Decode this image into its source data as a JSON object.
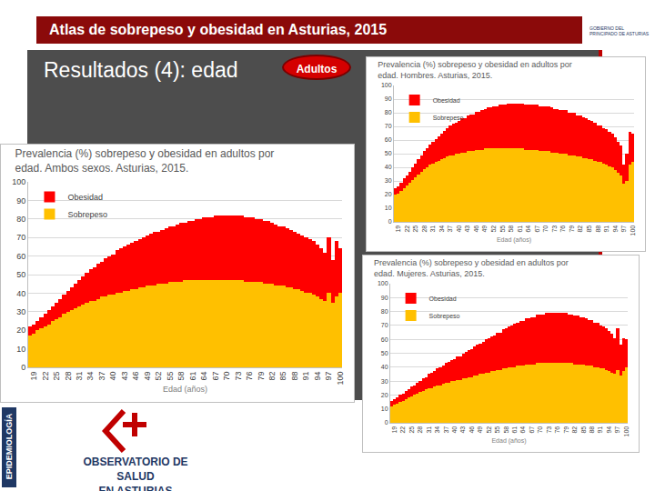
{
  "slide": {
    "title": "Atlas de sobrepeso y obesidad en Asturias, 2015",
    "heading": "Resultados (4): edad",
    "badge": "Adultos",
    "logo_top": [
      "GOBIERNO DEL",
      "PRINCIPADO DE ASTURIAS"
    ],
    "logo_bottom": [
      "OBSERVATORIO DE SALUD",
      "EN ASTURIAS"
    ],
    "side_label": "EPIDEMIOLOGÍA"
  },
  "chart_data": [
    {
      "type": "bar",
      "title": "Prevalencia (%) sobrepeso y obesidad en adultos por edad. Ambos sexos. Asturias, 2015.",
      "x_label": "Edad (años)",
      "stacked": true,
      "grid": true,
      "legend": "top left",
      "ylim": [
        0,
        100
      ],
      "yticks": [
        0,
        10,
        20,
        30,
        40,
        50,
        60,
        70,
        80,
        90,
        100
      ],
      "categories": [
        null,
        "19",
        null,
        null,
        "22",
        null,
        null,
        "25",
        null,
        null,
        "28",
        null,
        null,
        "31",
        null,
        null,
        "34",
        null,
        null,
        "37",
        null,
        null,
        "40",
        null,
        null,
        "43",
        null,
        null,
        "46",
        null,
        null,
        "49",
        null,
        null,
        "52",
        null,
        null,
        "55",
        null,
        null,
        "58",
        null,
        null,
        "61",
        null,
        null,
        "64",
        null,
        null,
        "67",
        null,
        null,
        "70",
        null,
        null,
        "73",
        null,
        null,
        "76",
        null,
        null,
        "79",
        null,
        null,
        "82",
        null,
        null,
        "85",
        null,
        null,
        "88",
        null,
        null,
        "91",
        null,
        null,
        "94",
        null,
        null,
        "97",
        null,
        null,
        "100"
      ],
      "series": [
        {
          "name": "Sobrepeso",
          "color": "#ffc000",
          "values": [
            17,
            18,
            20,
            21,
            22,
            23,
            25,
            26,
            27,
            29,
            30,
            31,
            32,
            33,
            34,
            35,
            36,
            36,
            37,
            38,
            38,
            39,
            39,
            40,
            40,
            41,
            41,
            42,
            42,
            43,
            43,
            44,
            44,
            44,
            45,
            45,
            45,
            46,
            46,
            46,
            46,
            47,
            47,
            47,
            47,
            47,
            47,
            47,
            47,
            47,
            47,
            47,
            47,
            47,
            47,
            47,
            47,
            46,
            46,
            46,
            46,
            46,
            45,
            45,
            45,
            44,
            44,
            44,
            43,
            43,
            42,
            42,
            41,
            40,
            40,
            39,
            38,
            37,
            36,
            40,
            35,
            38,
            40
          ]
        },
        {
          "name": "Obesidad",
          "color": "#ff0000",
          "values": [
            5,
            5,
            5,
            6,
            7,
            8,
            8,
            9,
            10,
            10,
            11,
            12,
            13,
            14,
            15,
            16,
            17,
            18,
            19,
            19,
            21,
            21,
            22,
            23,
            24,
            24,
            25,
            25,
            26,
            26,
            27,
            27,
            28,
            29,
            28,
            29,
            30,
            30,
            30,
            31,
            32,
            31,
            32,
            32,
            33,
            33,
            34,
            34,
            34,
            35,
            35,
            35,
            35,
            35,
            35,
            35,
            35,
            35,
            35,
            35,
            34,
            34,
            34,
            34,
            33,
            33,
            32,
            32,
            32,
            31,
            31,
            30,
            30,
            30,
            29,
            29,
            28,
            27,
            26,
            30,
            23,
            30,
            24
          ]
        }
      ]
    },
    {
      "type": "bar",
      "title": "Prevalencia (%) sobrepeso y obesidad en adultos por edad. Hombres. Asturias, 2015.",
      "x_label": "Edad (años)",
      "stacked": true,
      "grid": true,
      "legend": "top left",
      "ylim": [
        0,
        100
      ],
      "yticks": [
        0,
        10,
        20,
        30,
        40,
        50,
        60,
        70,
        80,
        90,
        100
      ],
      "categories": [
        null,
        "19",
        null,
        null,
        "22",
        null,
        null,
        "25",
        null,
        null,
        "28",
        null,
        null,
        "31",
        null,
        null,
        "34",
        null,
        null,
        "37",
        null,
        null,
        "40",
        null,
        null,
        "43",
        null,
        null,
        "46",
        null,
        null,
        "49",
        null,
        null,
        "52",
        null,
        null,
        "55",
        null,
        null,
        "58",
        null,
        null,
        "61",
        null,
        null,
        "64",
        null,
        null,
        "67",
        null,
        null,
        "70",
        null,
        null,
        "73",
        null,
        null,
        "76",
        null,
        null,
        "79",
        null,
        null,
        "82",
        null,
        null,
        "85",
        null,
        null,
        "88",
        null,
        null,
        "91",
        null,
        null,
        "94",
        null,
        null,
        "97",
        null,
        null,
        "100"
      ],
      "series": [
        {
          "name": "Sobrepeso",
          "color": "#ffc000",
          "values": [
            20,
            21,
            23,
            25,
            27,
            29,
            31,
            33,
            35,
            37,
            39,
            40,
            42,
            43,
            44,
            45,
            46,
            47,
            48,
            49,
            49,
            50,
            50,
            51,
            51,
            52,
            52,
            52,
            53,
            53,
            53,
            54,
            54,
            54,
            54,
            54,
            54,
            54,
            54,
            54,
            54,
            54,
            54,
            54,
            54,
            53,
            53,
            53,
            53,
            53,
            52,
            52,
            52,
            52,
            51,
            51,
            51,
            50,
            50,
            50,
            49,
            49,
            49,
            48,
            48,
            47,
            47,
            46,
            46,
            45,
            44,
            44,
            43,
            42,
            41,
            40,
            38,
            36,
            34,
            28,
            30,
            42,
            44
          ]
        },
        {
          "name": "Obesidad",
          "color": "#ff0000",
          "values": [
            5,
            5,
            6,
            7,
            7,
            8,
            9,
            10,
            11,
            12,
            13,
            14,
            15,
            16,
            17,
            18,
            19,
            20,
            21,
            22,
            23,
            23,
            24,
            25,
            25,
            26,
            27,
            27,
            28,
            28,
            29,
            29,
            30,
            30,
            31,
            31,
            32,
            32,
            32,
            33,
            33,
            33,
            33,
            33,
            33,
            33,
            33,
            33,
            33,
            33,
            33,
            33,
            33,
            33,
            33,
            32,
            32,
            32,
            32,
            32,
            31,
            31,
            31,
            30,
            30,
            30,
            29,
            29,
            28,
            28,
            27,
            27,
            26,
            26,
            25,
            25,
            24,
            23,
            22,
            14,
            20,
            24,
            21
          ]
        }
      ]
    },
    {
      "type": "bar",
      "title": "Prevalencia (%) sobrepeso y obesidad en adultos por edad. Mujeres. Asturias, 2015.",
      "x_label": "Edad (años)",
      "stacked": true,
      "grid": true,
      "legend": "top left",
      "ylim": [
        0,
        100
      ],
      "yticks": [
        0,
        10,
        20,
        30,
        40,
        50,
        60,
        70,
        80,
        90,
        100
      ],
      "categories": [
        null,
        "19",
        null,
        null,
        "22",
        null,
        null,
        "25",
        null,
        null,
        "28",
        null,
        null,
        "31",
        null,
        null,
        "34",
        null,
        null,
        "37",
        null,
        null,
        "40",
        null,
        null,
        "43",
        null,
        null,
        "46",
        null,
        null,
        "49",
        null,
        null,
        "52",
        null,
        null,
        "55",
        null,
        null,
        "58",
        null,
        null,
        "61",
        null,
        null,
        "64",
        null,
        null,
        "67",
        null,
        null,
        "70",
        null,
        null,
        "73",
        null,
        null,
        "76",
        null,
        null,
        "79",
        null,
        null,
        "82",
        null,
        null,
        "85",
        null,
        null,
        "88",
        null,
        null,
        "91",
        null,
        null,
        "94",
        null,
        null,
        "97",
        null,
        null,
        "100"
      ],
      "series": [
        {
          "name": "Sobrepeso",
          "color": "#ffc000",
          "values": [
            12,
            13,
            14,
            15,
            16,
            17,
            18,
            19,
            20,
            21,
            22,
            23,
            24,
            25,
            25,
            26,
            27,
            27,
            28,
            29,
            29,
            30,
            30,
            31,
            31,
            32,
            32,
            33,
            33,
            34,
            34,
            35,
            35,
            36,
            36,
            37,
            37,
            38,
            38,
            39,
            39,
            40,
            40,
            40,
            41,
            41,
            41,
            42,
            42,
            42,
            42,
            43,
            43,
            43,
            43,
            43,
            43,
            43,
            43,
            43,
            43,
            43,
            43,
            43,
            42,
            42,
            42,
            42,
            41,
            41,
            41,
            40,
            40,
            39,
            39,
            38,
            37,
            36,
            35,
            38,
            34,
            37,
            40
          ]
        },
        {
          "name": "Obesidad",
          "color": "#ff0000",
          "values": [
            4,
            4,
            4,
            5,
            5,
            6,
            6,
            7,
            7,
            8,
            8,
            9,
            9,
            10,
            11,
            11,
            12,
            13,
            13,
            14,
            15,
            15,
            16,
            17,
            17,
            18,
            19,
            19,
            20,
            21,
            22,
            22,
            23,
            24,
            25,
            25,
            26,
            27,
            27,
            28,
            29,
            29,
            30,
            31,
            31,
            32,
            32,
            33,
            33,
            34,
            34,
            35,
            35,
            35,
            36,
            36,
            36,
            36,
            36,
            36,
            36,
            36,
            35,
            35,
            35,
            35,
            34,
            34,
            34,
            33,
            33,
            32,
            32,
            31,
            30,
            30,
            29,
            28,
            26,
            30,
            22,
            24,
            20
          ]
        }
      ]
    }
  ]
}
